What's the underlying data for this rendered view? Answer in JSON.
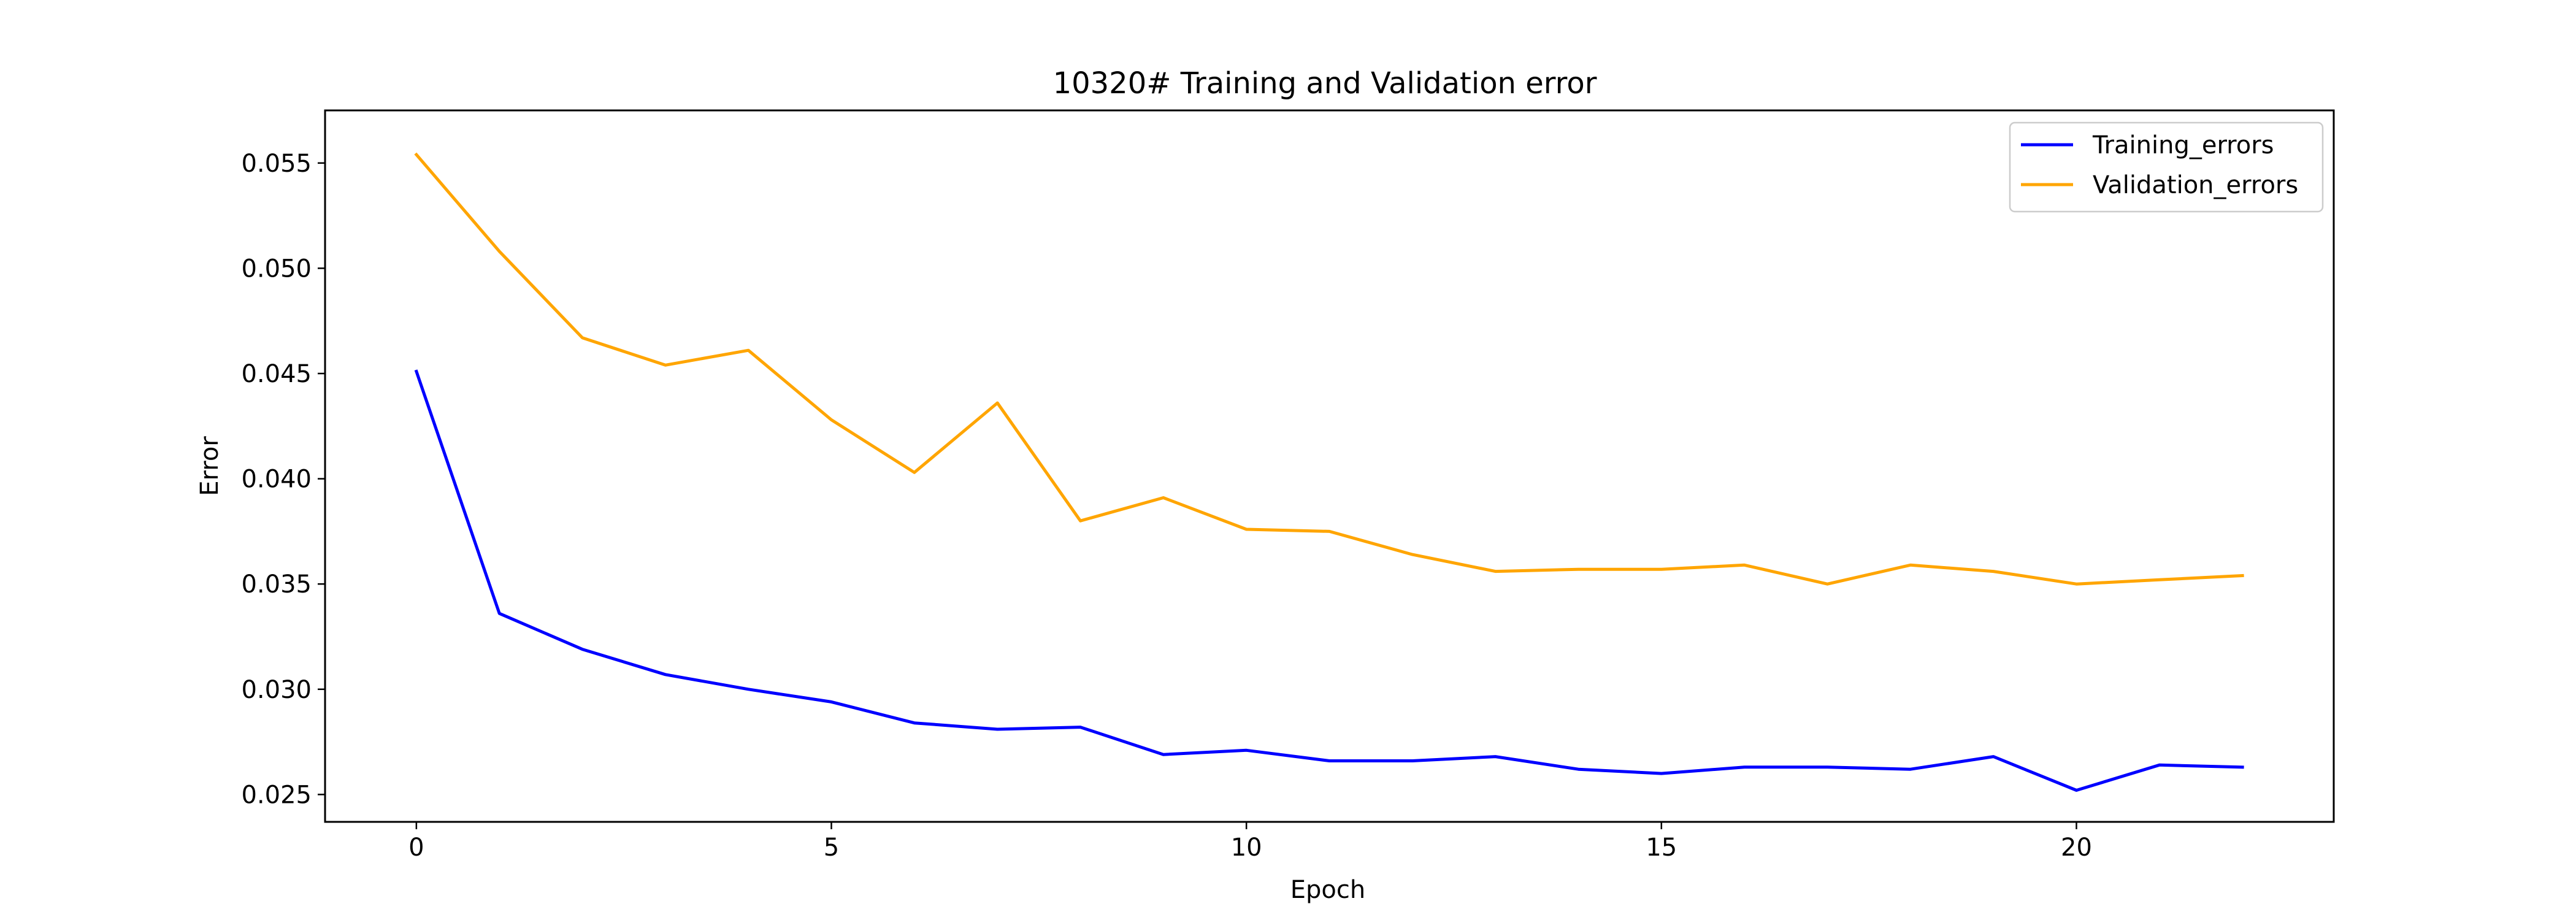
{
  "chart_data": {
    "type": "line",
    "title": "10320# Training and Validation error",
    "xlabel": "Epoch",
    "ylabel": "Error",
    "xlim": [
      -1.1,
      23.1
    ],
    "ylim": [
      0.0237,
      0.0575
    ],
    "xticks": [
      0,
      5,
      10,
      15,
      20
    ],
    "yticks": [
      0.025,
      0.03,
      0.035,
      0.04,
      0.045,
      0.05,
      0.055
    ],
    "ytick_labels": [
      "0.025",
      "0.030",
      "0.035",
      "0.040",
      "0.045",
      "0.050",
      "0.055"
    ],
    "grid": false,
    "legend": "top-right",
    "x": [
      0,
      1,
      2,
      3,
      4,
      5,
      6,
      7,
      8,
      9,
      10,
      11,
      12,
      13,
      14,
      15,
      16,
      17,
      18,
      19,
      20,
      21,
      22
    ],
    "series": [
      {
        "name": "Training_errors",
        "color": "#0000ff",
        "values": [
          0.0451,
          0.0336,
          0.0319,
          0.0307,
          0.03,
          0.0294,
          0.0284,
          0.0281,
          0.0282,
          0.0269,
          0.0271,
          0.0266,
          0.0266,
          0.0268,
          0.0262,
          0.026,
          0.0263,
          0.0263,
          0.0262,
          0.0268,
          0.0252,
          0.0264,
          0.0263
        ]
      },
      {
        "name": "Validation_errors",
        "color": "#ffa500",
        "values": [
          0.0554,
          0.0508,
          0.0467,
          0.0454,
          0.0461,
          0.0428,
          0.0403,
          0.0436,
          0.038,
          0.0391,
          0.0376,
          0.0375,
          0.0364,
          0.0356,
          0.0357,
          0.0357,
          0.0359,
          0.035,
          0.0359,
          0.0356,
          0.035,
          0.0352,
          0.0354
        ]
      }
    ]
  }
}
